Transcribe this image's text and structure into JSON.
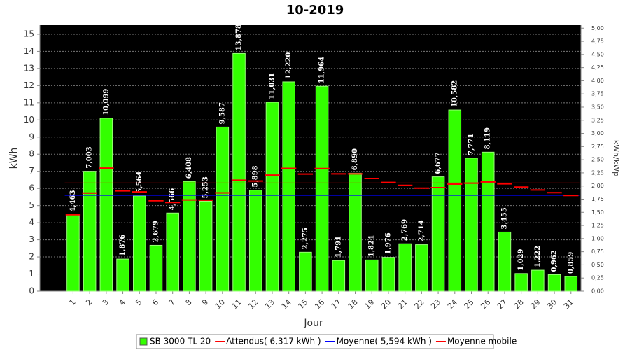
{
  "chart_data": {
    "type": "bar",
    "title": "10-2019",
    "x_label": "Jour",
    "y_label": "kWh",
    "y2_label": "kWh/kWp",
    "categories": [
      "1",
      "2",
      "3",
      "4",
      "5",
      "6",
      "7",
      "8",
      "9",
      "10",
      "11",
      "12",
      "13",
      "14",
      "15",
      "16",
      "17",
      "18",
      "19",
      "20",
      "21",
      "22",
      "23",
      "24",
      "25",
      "26",
      "27",
      "28",
      "29",
      "30",
      "31"
    ],
    "series": [
      {
        "name": "SB 3000 TL 20",
        "color": "#33ff00",
        "values": [
          4.463,
          7.003,
          10.099,
          1.876,
          5.564,
          2.679,
          4.566,
          6.408,
          5.253,
          9.587,
          13.878,
          5.898,
          11.031,
          12.22,
          2.275,
          11.964,
          1.791,
          6.89,
          1.824,
          1.976,
          2.769,
          2.714,
          6.677,
          10.582,
          7.771,
          8.119,
          3.455,
          1.029,
          1.222,
          0.962,
          0.859
        ],
        "value_labels": [
          "4,463",
          "7,003",
          "10,099",
          "1,876",
          "5,564",
          "2,679",
          "4,566",
          "6,408",
          "5,253",
          "9,587",
          "13,878",
          "5,898",
          "11,031",
          "12,220",
          "2,275",
          "11,964",
          "1,791",
          "6,890",
          "1,824",
          "1,976",
          "2,769",
          "2,714",
          "6,677",
          "10,582",
          "7,771",
          "8,119",
          "3,455",
          "1,029",
          "1,222",
          "0,962",
          "0,859"
        ]
      },
      {
        "name": "Attendus( 6,317 kWh )",
        "color": "#ff0000",
        "value": 6.317
      },
      {
        "name": "Moyenne( 5,594 kWh )",
        "color": "#0000ff",
        "value": 5.594
      },
      {
        "name": "Moyenne mobile",
        "color": "#ff0000",
        "values": [
          4.463,
          5.733,
          7.188,
          5.86,
          5.8,
          5.28,
          5.18,
          5.33,
          5.32,
          5.74,
          6.48,
          6.43,
          6.78,
          7.17,
          6.84,
          7.16,
          6.85,
          6.85,
          6.58,
          6.35,
          6.18,
          6.02,
          6.05,
          6.25,
          6.31,
          6.38,
          6.27,
          6.08,
          5.91,
          5.75,
          5.59
        ]
      }
    ],
    "ylim": [
      0,
      15.57
    ],
    "yticks": [
      0,
      1,
      2,
      3,
      4,
      5,
      6,
      7,
      8,
      9,
      10,
      11,
      12,
      13,
      14,
      15
    ],
    "y2lim": [
      0,
      5.07
    ],
    "y2ticks": [
      {
        "value": 0,
        "label": "0,00"
      },
      {
        "value": 0.25,
        "label": "0,25"
      },
      {
        "value": 0.5,
        "label": "0,50"
      },
      {
        "value": 0.75,
        "label": "0,75"
      },
      {
        "value": 1,
        "label": "1,00"
      },
      {
        "value": 1.25,
        "label": "1,25"
      },
      {
        "value": 1.5,
        "label": "1,50"
      },
      {
        "value": 1.75,
        "label": "1,75"
      },
      {
        "value": 2,
        "label": "2,00"
      },
      {
        "value": 2.25,
        "label": "2,25"
      },
      {
        "value": 2.5,
        "label": "2,50"
      },
      {
        "value": 2.75,
        "label": "2,75"
      },
      {
        "value": 3,
        "label": "3,00"
      },
      {
        "value": 3.25,
        "label": "3,25"
      },
      {
        "value": 3.5,
        "label": "3,50"
      },
      {
        "value": 3.75,
        "label": "3,75"
      },
      {
        "value": 4,
        "label": "4,00"
      },
      {
        "value": 4.25,
        "label": "4,25"
      },
      {
        "value": 4.5,
        "label": "4,50"
      },
      {
        "value": 4.75,
        "label": "4,75"
      },
      {
        "value": 5,
        "label": "5,00"
      }
    ],
    "grid": true
  }
}
